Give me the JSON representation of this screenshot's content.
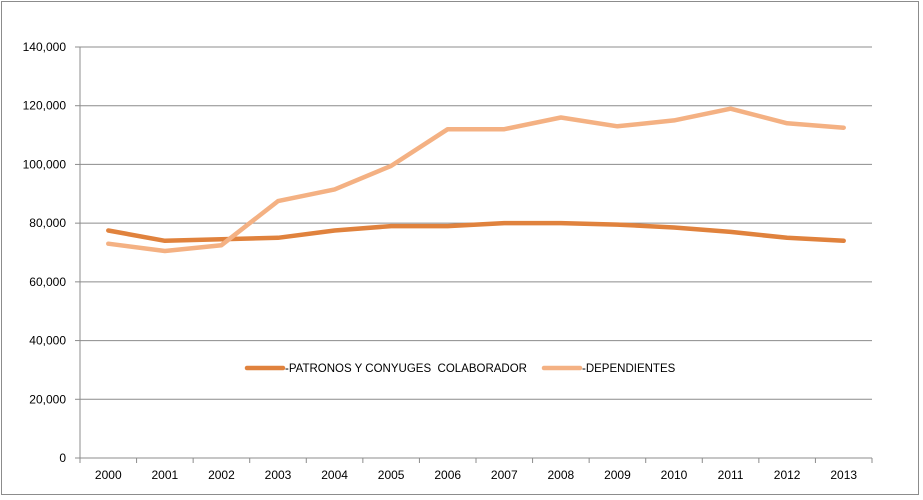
{
  "chart_data": {
    "type": "line",
    "title": "",
    "xlabel": "",
    "ylabel": "",
    "categories": [
      "2000",
      "2001",
      "2002",
      "2003",
      "2004",
      "2005",
      "2006",
      "2007",
      "2008",
      "2009",
      "2010",
      "2011",
      "2012",
      "2013"
    ],
    "ylim": [
      0,
      140000
    ],
    "y_ticks": [
      0,
      20000,
      40000,
      60000,
      80000,
      100000,
      120000,
      140000
    ],
    "y_tick_labels": [
      "0",
      "20,000",
      "40,000",
      "60,000",
      "80,000",
      "100,000",
      "120,000",
      "140,000"
    ],
    "grid": "horizontal",
    "legend_position": "center",
    "series": [
      {
        "name": "-PATRONOS Y CONYUGES  COLABORADOR",
        "color": "#e0823d",
        "values": [
          77500,
          74000,
          74500,
          75000,
          77500,
          79000,
          79000,
          80000,
          80000,
          79500,
          78500,
          77000,
          75000,
          74000
        ]
      },
      {
        "name": "-DEPENDIENTES",
        "color": "#f4b183",
        "values": [
          73000,
          70500,
          72500,
          87500,
          91500,
          99500,
          112000,
          112000,
          116000,
          113000,
          115000,
          119000,
          114000,
          112500
        ]
      }
    ]
  }
}
